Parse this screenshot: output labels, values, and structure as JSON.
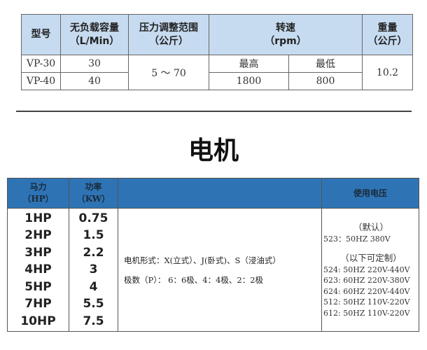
{
  "spec_table": {
    "headers": {
      "model": "型号",
      "capacity": [
        "无负载容量",
        "（L/Min）"
      ],
      "pressure": [
        "压力调整范围",
        "（公斤）"
      ],
      "speed": [
        "转速",
        "（rpm）"
      ],
      "weight": [
        "重量",
        "（公斤）"
      ]
    },
    "speed_sub": {
      "max": "最高",
      "min": "最低",
      "max_value": "1800",
      "min_value": "800"
    },
    "rows": [
      {
        "model": "VP-30",
        "capacity": "30"
      },
      {
        "model": "VP-40",
        "capacity": "40"
      }
    ],
    "pressure_value": "5 ～ 70",
    "weight_value": "10.2"
  },
  "motor_title": "电机",
  "motor_table": {
    "headers": {
      "hp": [
        "马力",
        "（HP）"
      ],
      "kw": [
        "功率",
        "（KW）"
      ],
      "blank": "",
      "voltage": "使用电压"
    },
    "hp": [
      "1HP",
      "2HP",
      "3HP",
      "4HP",
      "5HP",
      "7HP",
      "10HP"
    ],
    "kw": [
      "0.75",
      "1.5",
      "2.2",
      "3",
      "4",
      "5.5",
      "7.5"
    ],
    "description": [
      "电机形式：X(立式）、J(卧式)、S（浸油式）",
      "极数（P）： 6：6极、4：4极、2：2极"
    ],
    "voltage": {
      "default_label": "（默认）",
      "default": "523：50HZ 380V",
      "custom_label": "（以下可定制）",
      "custom": [
        "524: 50HZ 220V-440V",
        "623: 60HZ 220V-380V",
        "624: 60HZ 220V-440V",
        "512: 50HZ 110V-220V",
        "612: 50HZ 110V-220V"
      ]
    }
  }
}
